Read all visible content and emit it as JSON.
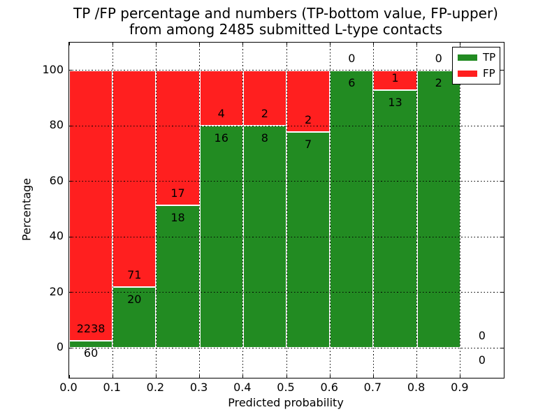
{
  "chart_data": {
    "type": "bar",
    "stacked": true,
    "normalized_to_percent": true,
    "title_line1": "TP /FP percentage and numbers (TP-bottom value, FP-upper)",
    "title_line2": "from among 2485 submitted L-type contacts",
    "xlabel": "Predicted probability",
    "ylabel": "Percentage",
    "xlim": [
      0.0,
      1.0
    ],
    "ylim": [
      -10.8,
      110.0
    ],
    "xtick_values": [
      0.0,
      0.1,
      0.2,
      0.3,
      0.4,
      0.5,
      0.6,
      0.7,
      0.8,
      0.9
    ],
    "xtick_labels": [
      "0.0",
      "0.1",
      "0.2",
      "0.3",
      "0.4",
      "0.5",
      "0.6",
      "0.7",
      "0.8",
      "0.9"
    ],
    "ytick_values": [
      0,
      20,
      40,
      60,
      80,
      100
    ],
    "ytick_labels": [
      "0",
      "20",
      "40",
      "60",
      "80",
      "100"
    ],
    "grid": {
      "visible": true,
      "linestyle": "dotted",
      "color": "#000000"
    },
    "colors": {
      "tp": "#228b22",
      "fp": "#ff1f1f",
      "bar_edge": "#ffffff"
    },
    "legend": {
      "position": "upper-right",
      "entries": [
        {
          "name": "tp",
          "label": "TP",
          "color": "#228b22"
        },
        {
          "name": "fp",
          "label": "FP",
          "color": "#ff1f1f"
        }
      ]
    },
    "bins": [
      {
        "range": [
          0.0,
          0.1
        ],
        "tp": 60,
        "fp": 2238,
        "tp_pct": 2.6
      },
      {
        "range": [
          0.1,
          0.2
        ],
        "tp": 20,
        "fp": 71,
        "tp_pct": 22.0
      },
      {
        "range": [
          0.2,
          0.3
        ],
        "tp": 18,
        "fp": 17,
        "tp_pct": 51.4
      },
      {
        "range": [
          0.3,
          0.4
        ],
        "tp": 16,
        "fp": 4,
        "tp_pct": 80.0
      },
      {
        "range": [
          0.4,
          0.5
        ],
        "tp": 8,
        "fp": 2,
        "tp_pct": 80.0
      },
      {
        "range": [
          0.5,
          0.6
        ],
        "tp": 7,
        "fp": 2,
        "tp_pct": 77.8
      },
      {
        "range": [
          0.6,
          0.7
        ],
        "tp": 6,
        "fp": 0,
        "tp_pct": 100.0
      },
      {
        "range": [
          0.7,
          0.8
        ],
        "tp": 13,
        "fp": 1,
        "tp_pct": 92.9
      },
      {
        "range": [
          0.8,
          0.9
        ],
        "tp": 2,
        "fp": 0,
        "tp_pct": 100.0
      },
      {
        "range": [
          0.9,
          1.0
        ],
        "tp": 0,
        "fp": 0,
        "tp_pct": null
      }
    ]
  }
}
